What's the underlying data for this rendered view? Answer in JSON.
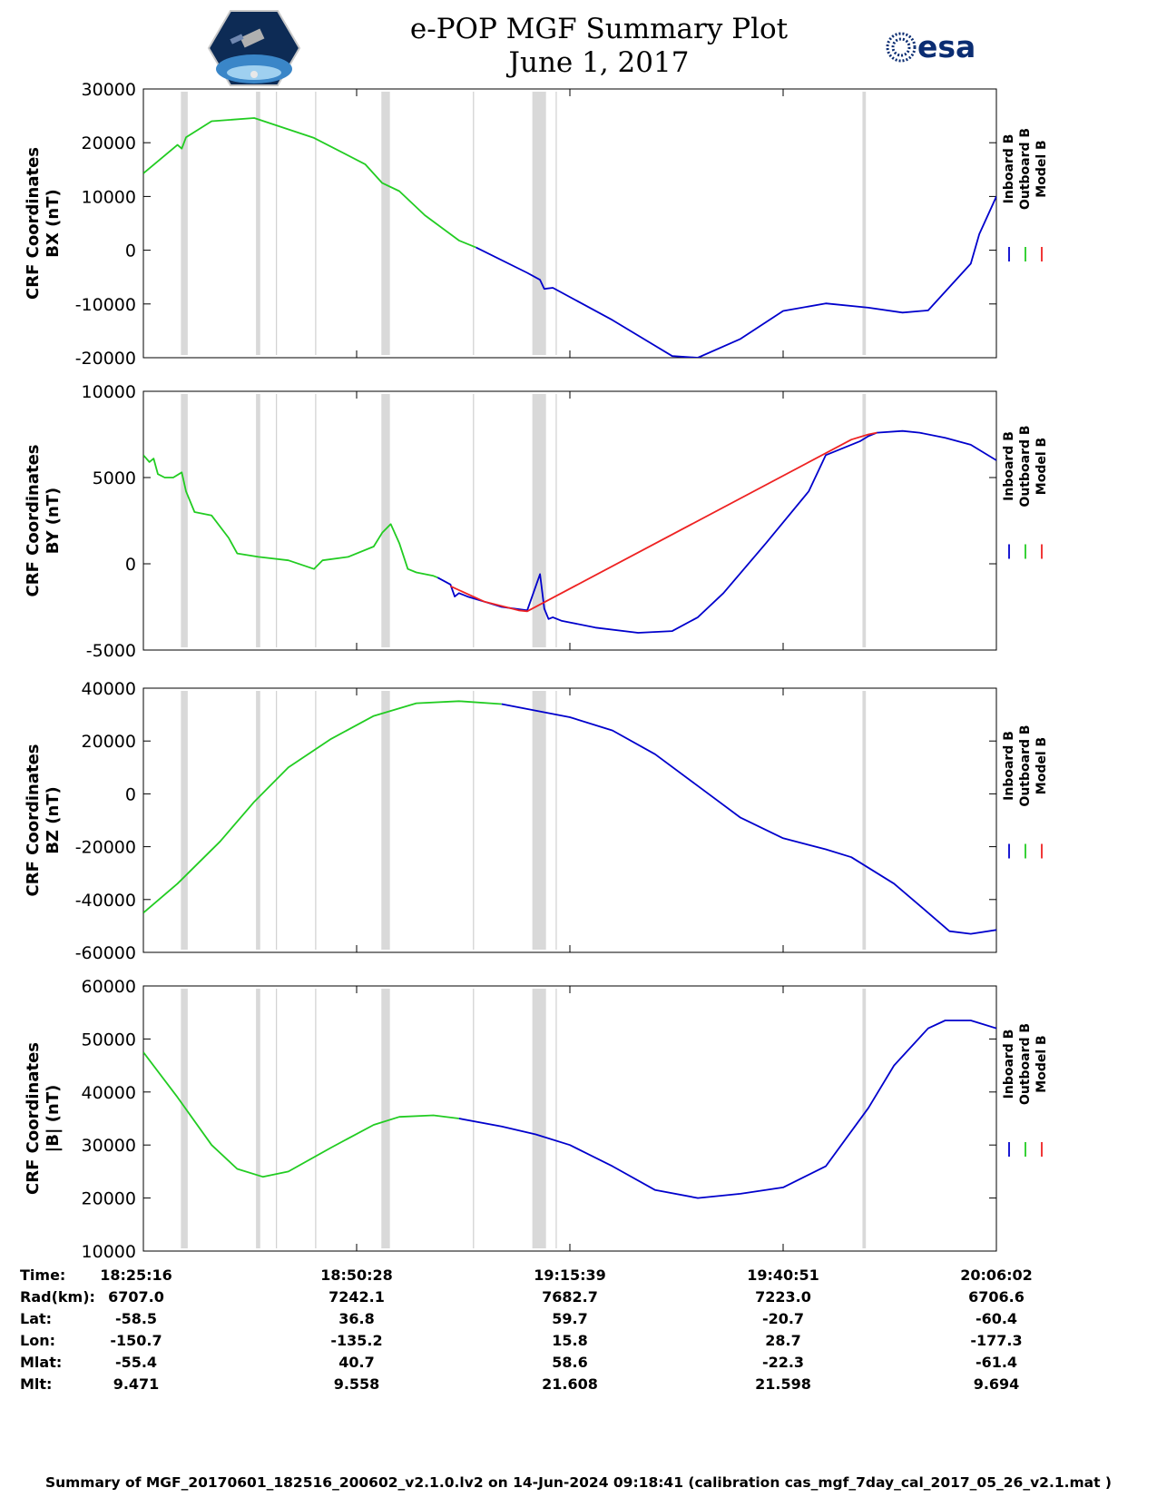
{
  "title_line1": "e-POP MGF Summary Plot",
  "title_line2": "June 1, 2017",
  "logos": {
    "left": "cassiope-logo",
    "right_text": "esa"
  },
  "legend": {
    "labels": [
      "Inboard B",
      "Outboard B",
      "Model B"
    ],
    "colors": [
      "#0000cc",
      "#22cc22",
      "#ee2222"
    ]
  },
  "shading_color": "#d9d9d9",
  "chart_data": [
    {
      "type": "line",
      "ylabel_line1": "CRF Coordinates",
      "ylabel_line2": "BX (nT)",
      "ylim": [
        -20000,
        30000
      ],
      "yticks": [
        "30000",
        "20000",
        "10000",
        "0",
        "-10000",
        "-20000"
      ],
      "x_min": 0,
      "x_max": 100,
      "series": [
        {
          "name": "Outboard B",
          "x": [
            0,
            4,
            4.5,
            5,
            8,
            13,
            20,
            26,
            28,
            30,
            33,
            37,
            39
          ],
          "y": [
            14300,
            19600,
            18900,
            21000,
            24000,
            24600,
            20900,
            16000,
            12500,
            11000,
            6500,
            1800,
            500
          ]
        },
        {
          "name": "Inboard B",
          "x": [
            39,
            45,
            46.5,
            47,
            48,
            55,
            62,
            65,
            70,
            75,
            80,
            85,
            89,
            92,
            97,
            98,
            100
          ],
          "y": [
            500,
            -4200,
            -5500,
            -7200,
            -7000,
            -13000,
            -19700,
            -20000,
            -16500,
            -11300,
            -9900,
            -10700,
            -11600,
            -11200,
            -2500,
            3000,
            10000
          ]
        }
      ]
    },
    {
      "type": "line",
      "ylabel_line1": "CRF Coordinates",
      "ylabel_line2": "BY (nT)",
      "ylim": [
        -5000,
        10000
      ],
      "yticks": [
        "10000",
        "5000",
        "0",
        "-5000"
      ],
      "x_min": 0,
      "x_max": 100,
      "series": [
        {
          "name": "Outboard B",
          "x": [
            0,
            0.7,
            1.2,
            1.7,
            2.5,
            3.5,
            4.5,
            5,
            6,
            7,
            8,
            10,
            11,
            13.5,
            17,
            20,
            21,
            24,
            27,
            28,
            29,
            30,
            31,
            32,
            34,
            34.5
          ],
          "y": [
            6300,
            5900,
            6100,
            5200,
            5000,
            5000,
            5300,
            4200,
            3000,
            2900,
            2800,
            1500,
            600,
            400,
            200,
            -300,
            200,
            400,
            1000,
            1800,
            2300,
            1200,
            -300,
            -500,
            -700,
            -800
          ]
        },
        {
          "name": "Inboard B",
          "x": [
            34.5,
            36,
            36.5,
            37,
            38,
            40,
            42,
            45,
            46.5,
            47,
            47.5,
            48,
            49,
            50,
            53,
            58,
            62,
            65,
            68,
            73,
            78,
            80,
            84,
            85,
            86,
            89,
            91,
            94,
            97,
            100
          ],
          "y": [
            -800,
            -1200,
            -1900,
            -1700,
            -1900,
            -2200,
            -2500,
            -2700,
            -600,
            -2600,
            -3200,
            -3100,
            -3300,
            -3400,
            -3700,
            -4000,
            -3900,
            -3100,
            -1700,
            1200,
            4200,
            6300,
            7100,
            7400,
            7600,
            7700,
            7600,
            7300,
            6900,
            6000
          ]
        },
        {
          "name": "Model B",
          "x": [
            36,
            40,
            44,
            45,
            83,
            85,
            86
          ],
          "y": [
            -1300,
            -2200,
            -2700,
            -2750,
            7200,
            7500,
            7600
          ]
        }
      ]
    },
    {
      "type": "line",
      "ylabel_line1": "CRF Coordinates",
      "ylabel_line2": "BZ (nT)",
      "ylim": [
        -60000,
        40000
      ],
      "yticks": [
        "40000",
        "20000",
        "0",
        "-20000",
        "-40000",
        "-60000"
      ],
      "x_min": 0,
      "x_max": 100,
      "series": [
        {
          "name": "Outboard B",
          "x": [
            0,
            4,
            9,
            13,
            17,
            22,
            27,
            32,
            37,
            42
          ],
          "y": [
            -45000,
            -34000,
            -18000,
            -3000,
            10000,
            20800,
            29500,
            34300,
            35100,
            34000
          ]
        },
        {
          "name": "Inboard B",
          "x": [
            42,
            50,
            55,
            60,
            65,
            70,
            75,
            80,
            83,
            88,
            92,
            94.5,
            97,
            100
          ],
          "y": [
            34000,
            29000,
            24000,
            15000,
            3000,
            -9000,
            -16800,
            -21000,
            -24000,
            -34000,
            -45000,
            -52000,
            -53000,
            -51500
          ]
        }
      ]
    },
    {
      "type": "line",
      "ylabel_line1": "CRF Coordinates",
      "ylabel_line2": "|B| (nT)",
      "ylim": [
        10000,
        60000
      ],
      "yticks": [
        "60000",
        "50000",
        "40000",
        "30000",
        "20000",
        "10000"
      ],
      "x_min": 0,
      "x_max": 100,
      "series": [
        {
          "name": "Outboard B",
          "x": [
            0,
            4,
            8,
            11,
            14,
            17,
            22,
            27,
            30,
            34,
            37
          ],
          "y": [
            47500,
            39000,
            30000,
            25500,
            24000,
            25000,
            29500,
            33800,
            35300,
            35600,
            35000
          ]
        },
        {
          "name": "Inboard B",
          "x": [
            37,
            42,
            46,
            50,
            55,
            60,
            65,
            70,
            75,
            80,
            85,
            88,
            92,
            94,
            97,
            98,
            100
          ],
          "y": [
            35000,
            33500,
            32000,
            30000,
            26000,
            21500,
            20000,
            20800,
            22000,
            26000,
            37000,
            45000,
            52000,
            53500,
            53500,
            53000,
            52000
          ]
        }
      ]
    }
  ],
  "shaded_bands": [
    [
      4.4,
      5.2
    ],
    [
      13.2,
      13.7
    ],
    [
      27.9,
      28.9
    ],
    [
      45.6,
      47.2
    ],
    [
      84.3,
      84.7
    ]
  ],
  "thin_lines": [
    15.6,
    20.2,
    38.7,
    48.4
  ],
  "ephemeris": {
    "labels": [
      "Time:",
      "Rad(km):",
      "Lat:",
      "Lon:",
      "Mlat:",
      "Mlt:"
    ],
    "columns": [
      {
        "Time": "18:25:16",
        "Rad": "6707.0",
        "Lat": "-58.5",
        "Lon": "-150.7",
        "Mlat": "-55.4",
        "Mlt": "9.471"
      },
      {
        "Time": "18:50:28",
        "Rad": "7242.1",
        "Lat": "36.8",
        "Lon": "-135.2",
        "Mlat": "40.7",
        "Mlt": "9.558"
      },
      {
        "Time": "19:15:39",
        "Rad": "7682.7",
        "Lat": "59.7",
        "Lon": "15.8",
        "Mlat": "58.6",
        "Mlt": "21.608"
      },
      {
        "Time": "19:40:51",
        "Rad": "7223.0",
        "Lat": "-20.7",
        "Lon": "28.7",
        "Mlat": "-22.3",
        "Mlt": "21.598"
      },
      {
        "Time": "20:06:02",
        "Rad": "6706.6",
        "Lat": "-60.4",
        "Lon": "-177.3",
        "Mlat": "-61.4",
        "Mlt": "9.694"
      }
    ]
  },
  "footer": "Summary of MGF_20170601_182516_200602_v2.1.0.lv2 on 14-Jun-2024 09:18:41 (calibration cas_mgf_7day_cal_2017_05_26_v2.1.mat )"
}
